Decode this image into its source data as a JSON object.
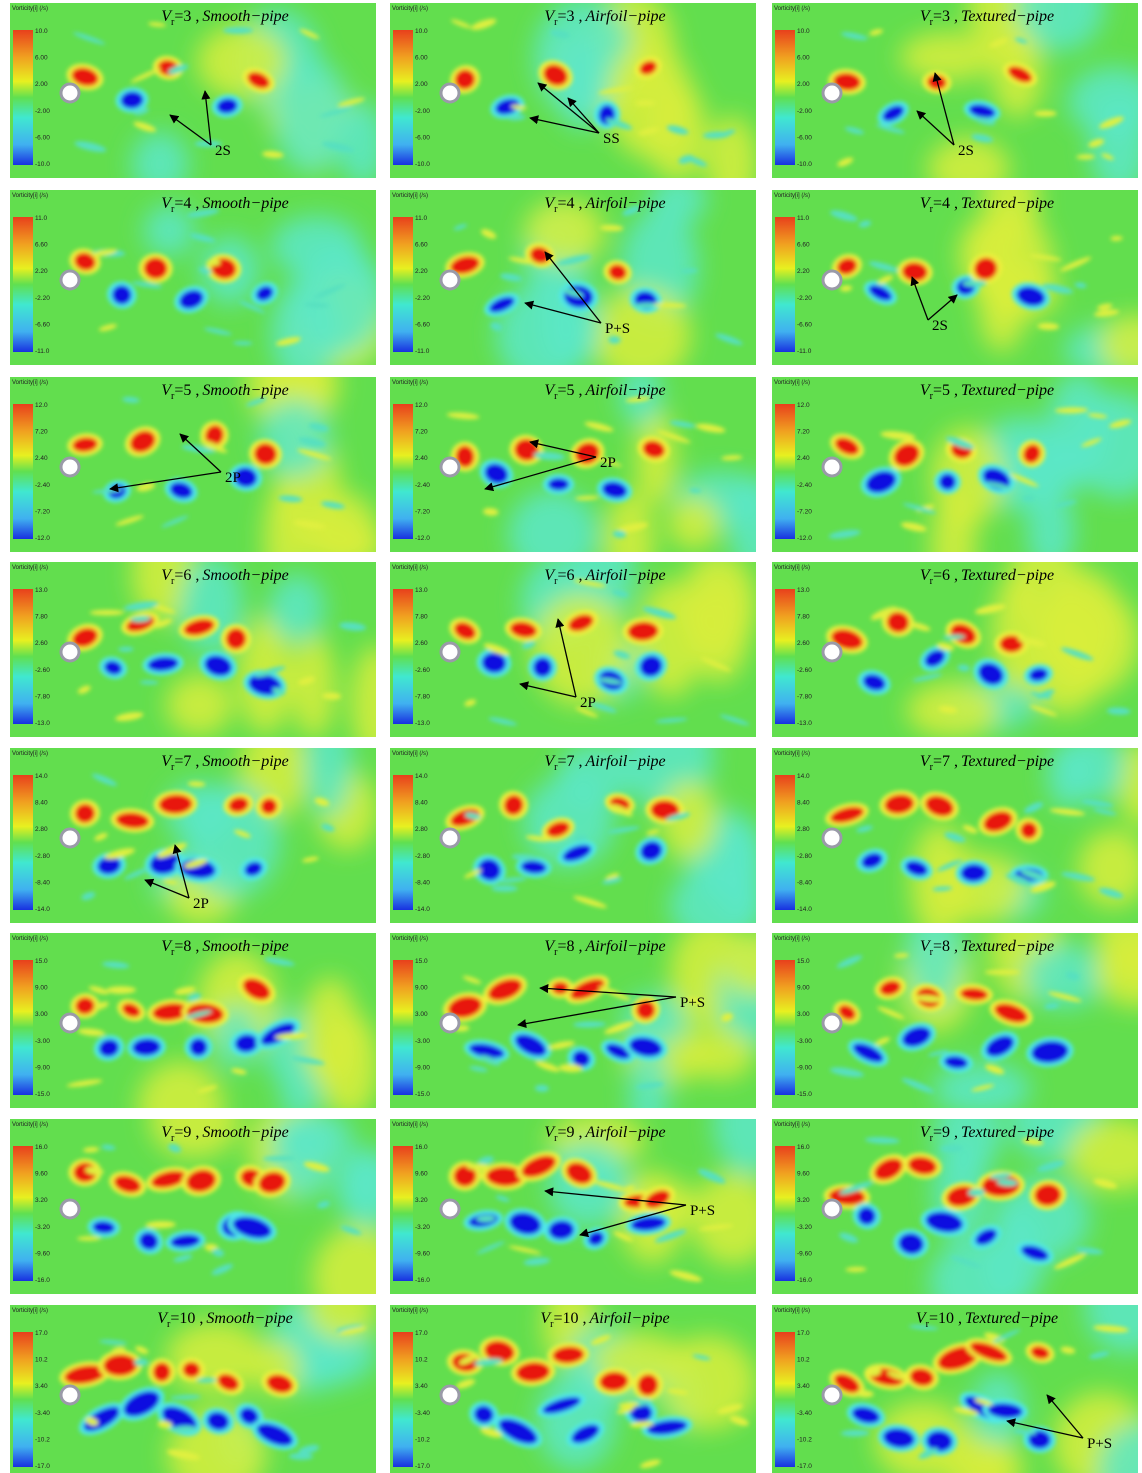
{
  "figure": {
    "colorbar_title": "Vorticity[i] (/s)",
    "rows": [
      {
        "scale": [
          "10.0",
          "6.00",
          "2.00",
          "-2.00",
          "-6.00",
          "-10.0"
        ],
        "panels": [
          {
            "symbol": "V",
            "subscript": "r",
            "value": "=3 ,",
            "pipe": "Smooth−pipe",
            "annotation": "2S"
          },
          {
            "symbol": "V",
            "subscript": "r",
            "value": "=3 ,",
            "pipe": "Airfoil−pipe",
            "annotation": "SS"
          },
          {
            "symbol": "V",
            "subscript": "r",
            "value": "=3 ,",
            "pipe": "Textured−pipe",
            "annotation": "2S"
          }
        ]
      },
      {
        "scale": [
          "11.0",
          "6.60",
          "2.20",
          "-2.20",
          "-6.60",
          "-11.0"
        ],
        "panels": [
          {
            "symbol": "V",
            "subscript": "r",
            "value": "=4 ,",
            "pipe": "Smooth−pipe"
          },
          {
            "symbol": "V",
            "subscript": "r",
            "value": "=4 ,",
            "pipe": "Airfoil−pipe",
            "annotation": "P+S"
          },
          {
            "symbol": "V",
            "subscript": "r",
            "value": "=4 ,",
            "pipe": "Textured−pipe",
            "annotation": "2S"
          }
        ]
      },
      {
        "scale": [
          "12.0",
          "7.20",
          "2.40",
          "-2.40",
          "-7.20",
          "-12.0"
        ],
        "panels": [
          {
            "symbol": "V",
            "subscript": "r",
            "value": "=5 ,",
            "pipe": "Smooth−pipe",
            "annotation": "2P"
          },
          {
            "symbol": "V",
            "subscript": "r",
            "value": "=5 ,",
            "pipe": "Airfoil−pipe",
            "annotation": "2P"
          },
          {
            "symbol": "V",
            "subscript": "r",
            "value": "=5 ,",
            "pipe": "Textured−pipe"
          }
        ]
      },
      {
        "scale": [
          "13.0",
          "7.80",
          "2.60",
          "-2.60",
          "-7.80",
          "-13.0"
        ],
        "panels": [
          {
            "symbol": "V",
            "subscript": "r",
            "value": "=6 ,",
            "pipe": "Smooth−pipe"
          },
          {
            "symbol": "V",
            "subscript": "r",
            "value": "=6 ,",
            "pipe": "Airfoil−pipe",
            "annotation": "2P"
          },
          {
            "symbol": "V",
            "subscript": "r",
            "value": "=6 ,",
            "pipe": "Textured−pipe"
          }
        ]
      },
      {
        "scale": [
          "14.0",
          "8.40",
          "2.80",
          "-2.80",
          "-8.40",
          "-14.0"
        ],
        "panels": [
          {
            "symbol": "V",
            "subscript": "r",
            "value": "=7 ,",
            "pipe": "Smooth−pipe",
            "annotation": "2P"
          },
          {
            "symbol": "V",
            "subscript": "r",
            "value": "=7 ,",
            "pipe": "Airfoil−pipe"
          },
          {
            "symbol": "V",
            "subscript": "r",
            "value": "=7 ,",
            "pipe": "Textured−pipe"
          }
        ]
      },
      {
        "scale": [
          "15.0",
          "9.00",
          "3.00",
          "-3.00",
          "-9.00",
          "-15.0"
        ],
        "panels": [
          {
            "symbol": "V",
            "subscript": "r",
            "value": "=8 ,",
            "pipe": "Smooth−pipe"
          },
          {
            "symbol": "V",
            "subscript": "r",
            "value": "=8 ,",
            "pipe": "Airfoil−pipe",
            "annotation": "P+S"
          },
          {
            "symbol": "V",
            "subscript": "r",
            "value": "=8 ,",
            "pipe": "Textured−pipe"
          }
        ]
      },
      {
        "scale": [
          "16.0",
          "9.60",
          "3.20",
          "-3.20",
          "-9.60",
          "-16.0"
        ],
        "panels": [
          {
            "symbol": "V",
            "subscript": "r",
            "value": "=9 ,",
            "pipe": "Smooth−pipe"
          },
          {
            "symbol": "V",
            "subscript": "r",
            "value": "=9 ,",
            "pipe": "Airfoil−pipe",
            "annotation": "P+S"
          },
          {
            "symbol": "V",
            "subscript": "r",
            "value": "=9 ,",
            "pipe": "Textured−pipe"
          }
        ]
      },
      {
        "scale": [
          "17.0",
          "10.2",
          "3.40",
          "-3.40",
          "-10.2",
          "-17.0"
        ],
        "panels": [
          {
            "symbol": "V",
            "subscript": "r",
            "value": "=10 ,",
            "pipe": "Smooth−pipe"
          },
          {
            "symbol": "V",
            "subscript": "r",
            "value": "=10 ,",
            "pipe": "Airfoil−pipe"
          },
          {
            "symbol": "V",
            "subscript": "r",
            "value": "=10 ,",
            "pipe": "Textured−pipe",
            "annotation": "P+S"
          }
        ]
      }
    ]
  }
}
